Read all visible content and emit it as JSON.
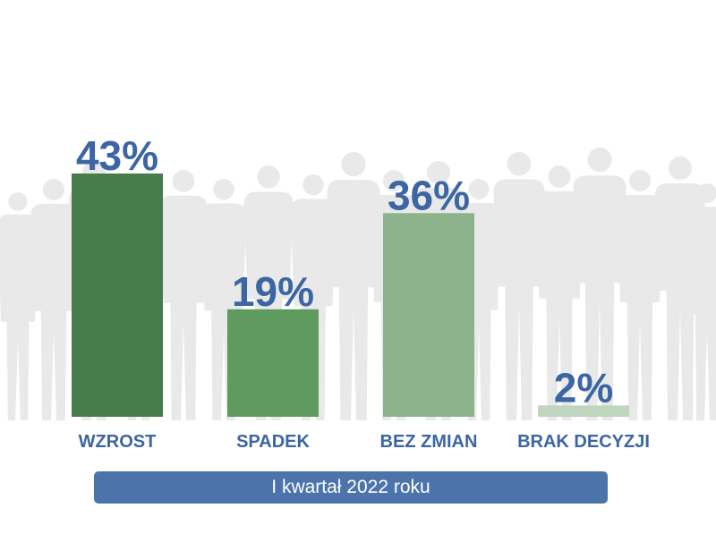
{
  "chart_data": {
    "type": "bar",
    "categories": [
      "WZROST",
      "SPADEK",
      "BEZ ZMIAN",
      "BRAK DECYZJI"
    ],
    "values": [
      43,
      19,
      36,
      2
    ],
    "value_labels": [
      "43%",
      "19%",
      "36%",
      "2%"
    ],
    "unit": "%",
    "ylim": [
      0,
      43
    ],
    "grid": false,
    "legend": "none",
    "bar_colors": [
      "#477d4a",
      "#5f9a5f",
      "#8cb38b",
      "#bfd5bd"
    ],
    "label_color": "#3c65a4",
    "background_decoration": "crowd-silhouettes"
  },
  "period_label": "I kwartał 2022 roku",
  "colors": {
    "banner": "#4b74ab",
    "banner_text": "#ffffff",
    "silhouette": "#e9e9e9"
  }
}
